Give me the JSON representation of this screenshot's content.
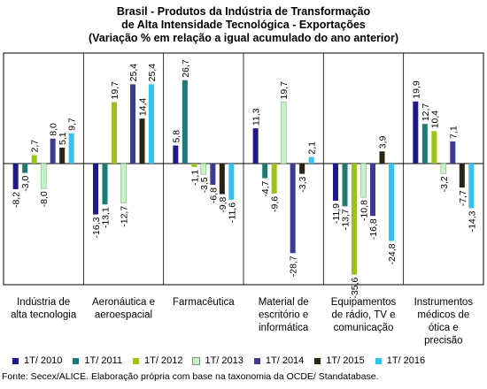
{
  "chart_data": {
    "type": "bar",
    "title_lines": [
      "Brasil - Produtos da Indústria de Transformação",
      "de Alta Intensidade Tecnológica - Exportações",
      "(Variação % em relação a igual acumulado do ano anterior)"
    ],
    "categories": [
      [
        "Indústria de",
        "alta tecnologia"
      ],
      [
        "Aeronáutica e",
        "aeroespacial"
      ],
      [
        "Farmacêutica"
      ],
      [
        "Material de",
        "escritório e",
        "informática"
      ],
      [
        "Equipamentos",
        "de rádio, TV e",
        "comunicação"
      ],
      [
        "Instrumentos",
        "médicos de",
        "ótica e",
        "precisão"
      ]
    ],
    "series": [
      {
        "name": "1T/ 2010",
        "color": "#1F1A8C",
        "values": [
          -8.2,
          -16.3,
          5.8,
          11.3,
          -11.9,
          19.9
        ]
      },
      {
        "name": "1T/ 2011",
        "color": "#1E7A77",
        "values": [
          -3.0,
          -13.1,
          26.7,
          -4.7,
          -13.7,
          12.7
        ]
      },
      {
        "name": "1T/ 2012",
        "color": "#9BC31A",
        "values": [
          2.7,
          19.7,
          -1.1,
          -9.6,
          -35.6,
          10.4
        ]
      },
      {
        "name": "1T/ 2013",
        "color": "#C8F0C8",
        "values": [
          -8.0,
          -12.7,
          -3.5,
          19.7,
          -10.8,
          -3.2
        ]
      },
      {
        "name": "1T/ 2014",
        "color": "#3B3A94",
        "values": [
          8.0,
          25.4,
          -6.8,
          -28.7,
          -16.8,
          7.1
        ]
      },
      {
        "name": "1T/ 2015",
        "color": "#2A2414",
        "values": [
          5.1,
          14.4,
          -9.8,
          -3.3,
          3.9,
          -7.7
        ]
      },
      {
        "name": "1T/ 2016",
        "color": "#33C3EE",
        "values": [
          9.7,
          25.4,
          -11.6,
          2.1,
          -24.8,
          -14.3
        ]
      }
    ],
    "ylim": [
      -40,
      30
    ],
    "grid": false,
    "legend": "bottom"
  },
  "footer": {
    "source": "Fonte: Secex/ALICE. Elaboração própria com base na taxonomia da OCDE/ Standatabase."
  }
}
